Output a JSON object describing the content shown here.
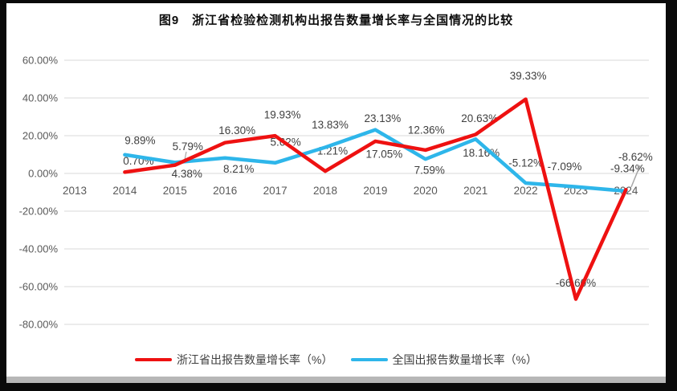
{
  "title": "图9　浙江省检验检测机构出报告数量增长率与全国情况的比较",
  "chart_data": {
    "type": "line",
    "categories": [
      "2013",
      "2014",
      "2015",
      "2016",
      "2017",
      "2018",
      "2019",
      "2020",
      "2021",
      "2022",
      "2023",
      "2024"
    ],
    "series": [
      {
        "name": "浙江省出报告数量增长率（%）",
        "color": "#ee1111",
        "values": [
          null,
          0.7,
          4.38,
          16.3,
          19.93,
          1.21,
          17.05,
          12.36,
          20.63,
          39.33,
          -66.6,
          -8.62
        ],
        "point_labels": [
          null,
          "0.70%",
          "4.38%",
          "16.30%",
          "19.93%",
          "1.21%",
          "17.05%",
          "12.36%",
          "20.63%",
          "39.33%",
          "-66.60%",
          "-8.62%"
        ],
        "label_offsets": [
          null,
          [
            17,
            -14
          ],
          [
            15,
            11
          ],
          [
            15,
            -15
          ],
          [
            9,
            -26
          ],
          [
            9,
            -25
          ],
          [
            11,
            16
          ],
          [
            1,
            -25
          ],
          [
            5,
            -20
          ],
          [
            3,
            -29
          ],
          [
            0,
            -20
          ],
          [
            12,
            -41
          ]
        ]
      },
      {
        "name": "全国出报告数量增长率（%）",
        "color": "#2eb6ea",
        "values": [
          null,
          9.89,
          5.79,
          8.21,
          5.62,
          13.83,
          23.13,
          7.59,
          18.16,
          -5.12,
          -7.09,
          -9.34
        ],
        "point_labels": [
          null,
          "9.89%",
          "5.79%",
          "8.21%",
          "5.62%",
          "13.83%",
          "23.13%",
          "7.59%",
          "18.16%",
          "-5.12%",
          "-7.09%",
          "-9.34%"
        ],
        "label_offsets": [
          null,
          [
            19,
            -18
          ],
          [
            16,
            -20
          ],
          [
            17,
            14
          ],
          [
            13,
            -26
          ],
          [
            6,
            -28
          ],
          [
            9,
            -14
          ],
          [
            5,
            14
          ],
          [
            7,
            17
          ],
          [
            0,
            -25
          ],
          [
            -14,
            -25
          ],
          [
            2,
            -28
          ]
        ]
      }
    ],
    "yticks": [
      "60.00%",
      "40.00%",
      "20.00%",
      "0.00%",
      "-20.00%",
      "-40.00%",
      "-60.00%",
      "-80.00%"
    ],
    "ylim": [
      -80,
      60
    ],
    "grid": true,
    "legend_position": "bottom",
    "colors": {
      "gridline": "#d9d9d9",
      "axis_text": "#595959",
      "data_label": "#3f3f3f",
      "leader": "#a6a6a6"
    }
  }
}
